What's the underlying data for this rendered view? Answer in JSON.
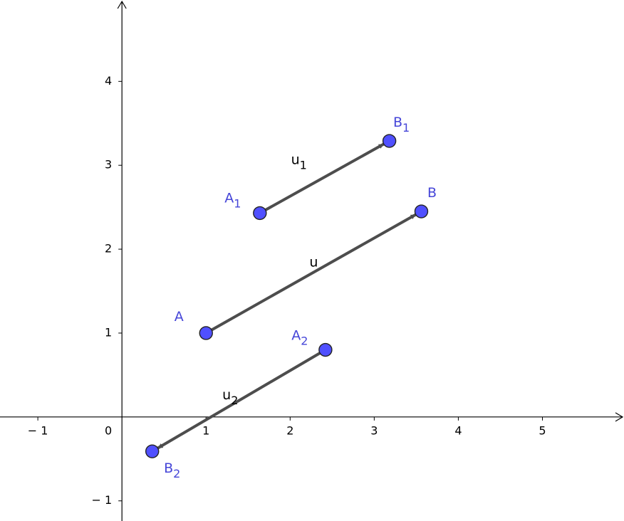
{
  "chart_data": {
    "type": "vector",
    "xlim": [
      -1.45,
      5.97
    ],
    "ylim": [
      -1.24,
      4.97
    ],
    "xticks": [
      {
        "value": -1,
        "label": "− 1"
      },
      1,
      2,
      3,
      4,
      5
    ],
    "yticks": [
      {
        "value": -1,
        "label": "− 1"
      },
      1,
      2,
      3,
      4
    ],
    "origin_label": "0",
    "point_color": "#5050ff",
    "vector_color": "#4d4d4d",
    "vectors": [
      {
        "label": "u",
        "start": {
          "label": "A",
          "x": 1,
          "y": 1
        },
        "end": {
          "label": "B",
          "x": 3.56,
          "y": 2.45
        }
      },
      {
        "label": "u",
        "subscript": "1",
        "start": {
          "label": "A",
          "subscript": "1",
          "x": 1.64,
          "y": 2.43
        },
        "end": {
          "label": "B",
          "subscript": "1",
          "x": 3.18,
          "y": 3.29
        }
      },
      {
        "label": "u",
        "subscript": "2",
        "start": {
          "label": "A",
          "subscript": "2",
          "x": 2.42,
          "y": 0.8
        },
        "end": {
          "label": "B",
          "subscript": "2",
          "x": 0.36,
          "y": -0.41
        }
      }
    ]
  }
}
